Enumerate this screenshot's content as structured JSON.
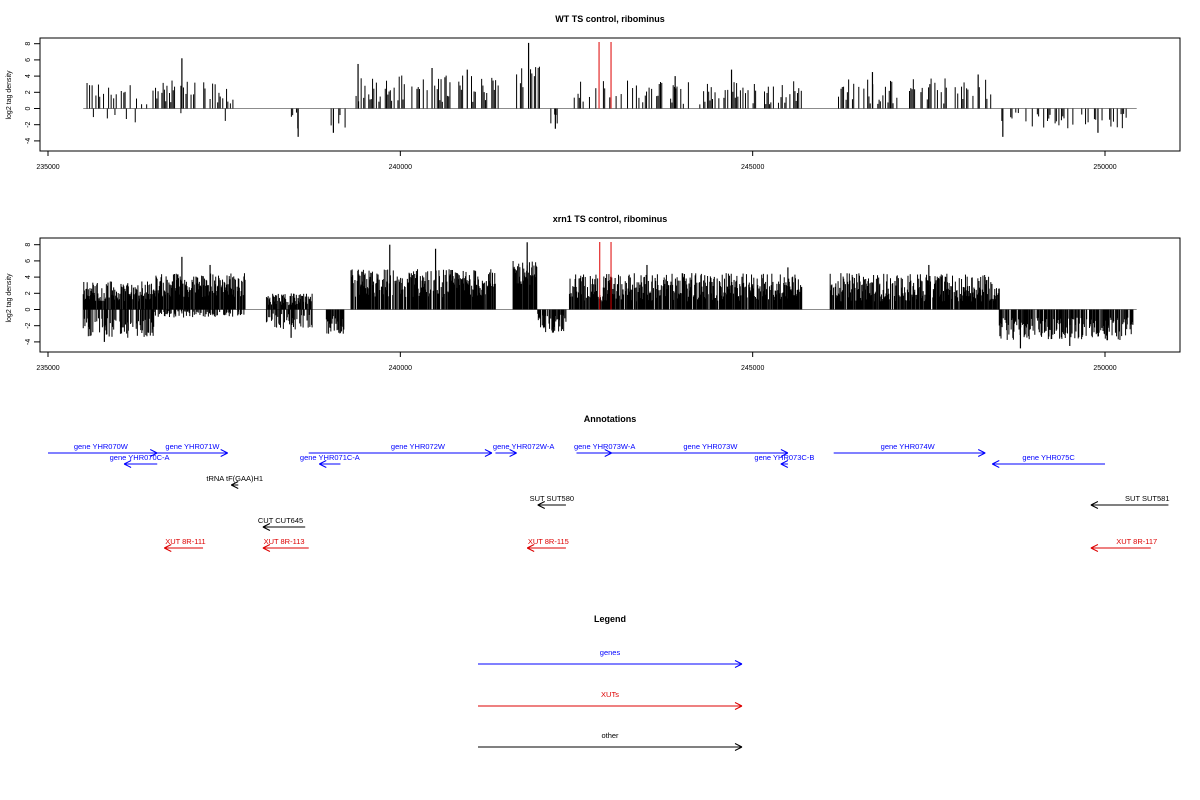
{
  "colors": {
    "gene": "#0000ff",
    "xut": "#dd0000",
    "other": "#000000",
    "marker": "#dd0000"
  },
  "chart_data": [
    {
      "type": "bar",
      "title": "WT TS control, ribominus",
      "ylabel": "log2 tag density",
      "xlim": [
        235000,
        250500
      ],
      "ylim": [
        -5,
        9
      ],
      "yticks": [
        -4,
        -2,
        0,
        2,
        4,
        6,
        8
      ],
      "xticks": [
        235000,
        240000,
        245000,
        250000
      ],
      "xtick_labels": [
        "235000",
        "240000",
        "245000",
        "250000"
      ],
      "baseline": [
        235500,
        250450
      ],
      "markers": [
        242820,
        242990
      ],
      "segments": [
        {
          "from": 235500,
          "to": 237650,
          "strand": "both",
          "pos": [
            0.5,
            3.5
          ],
          "neg": [
            -0.4,
            -1.8
          ],
          "peaks": [
            {
              "x": 236900,
              "v": 6.2
            }
          ]
        },
        {
          "from": 238000,
          "to": 238050,
          "strand": "both",
          "pos": [
            0.5,
            1.2
          ],
          "neg": [
            -0.5,
            -1.0
          ]
        },
        {
          "from": 238400,
          "to": 238700,
          "strand": "neg",
          "neg": [
            -0.5,
            -2.5
          ],
          "peaks": [
            {
              "x": 238550,
              "v": -3.5
            }
          ]
        },
        {
          "from": 239000,
          "to": 239250,
          "strand": "neg",
          "neg": [
            -0.5,
            -2.5
          ],
          "peaks": [
            {
              "x": 239050,
              "v": -3.0
            }
          ]
        },
        {
          "from": 239300,
          "to": 241400,
          "strand": "pos",
          "pos": [
            0.8,
            4.2
          ],
          "peaks": [
            {
              "x": 239400,
              "v": 5.5
            },
            {
              "x": 240450,
              "v": 5.0
            },
            {
              "x": 240950,
              "v": 4.8
            }
          ]
        },
        {
          "from": 241650,
          "to": 242000,
          "strand": "pos",
          "pos": [
            2.0,
            5.5
          ],
          "peaks": [
            {
              "x": 241820,
              "v": 8.1
            }
          ]
        },
        {
          "from": 242100,
          "to": 242250,
          "strand": "neg",
          "neg": [
            -0.5,
            -2.0
          ],
          "peaks": [
            {
              "x": 242200,
              "v": -2.5
            }
          ]
        },
        {
          "from": 242450,
          "to": 245700,
          "strand": "pos",
          "pos": [
            0.5,
            3.5
          ],
          "peaks": [
            {
              "x": 244700,
              "v": 4.8
            },
            {
              "x": 243900,
              "v": 4.0
            }
          ]
        },
        {
          "from": 246200,
          "to": 248400,
          "strand": "pos",
          "pos": [
            0.5,
            3.8
          ],
          "peaks": [
            {
              "x": 246700,
              "v": 4.5
            },
            {
              "x": 248200,
              "v": 4.2
            }
          ]
        },
        {
          "from": 248500,
          "to": 250350,
          "strand": "neg",
          "neg": [
            -0.5,
            -2.5
          ],
          "peaks": [
            {
              "x": 248550,
              "v": -3.5
            },
            {
              "x": 249900,
              "v": -3.0
            }
          ]
        }
      ]
    },
    {
      "type": "bar",
      "title": "xrn1 TS control, ribominus",
      "ylabel": "log2 tag density",
      "xlim": [
        235000,
        250500
      ],
      "ylim": [
        -5,
        9
      ],
      "yticks": [
        -4,
        -2,
        0,
        2,
        4,
        6,
        8
      ],
      "xticks": [
        235000,
        240000,
        245000,
        250000
      ],
      "xtick_labels": [
        "235000",
        "240000",
        "245000",
        "250000"
      ],
      "baseline": [
        235500,
        250450
      ],
      "markers": [
        242830,
        242990
      ],
      "segments": [
        {
          "from": 235500,
          "to": 236500,
          "strand": "both",
          "pos": [
            1.0,
            3.5
          ],
          "neg": [
            -1.0,
            -3.5
          ],
          "peaks": [
            {
              "x": 235800,
              "v": -4.0
            }
          ]
        },
        {
          "from": 236500,
          "to": 237800,
          "strand": "both",
          "pos": [
            1.5,
            4.5
          ],
          "neg": [
            -0.2,
            -1.0
          ],
          "peaks": [
            {
              "x": 236900,
              "v": 6.5
            },
            {
              "x": 237300,
              "v": 5.5
            }
          ]
        },
        {
          "from": 238100,
          "to": 238750,
          "strand": "both",
          "pos": [
            0.5,
            2.0
          ],
          "neg": [
            -0.5,
            -2.5
          ],
          "peaks": [
            {
              "x": 238450,
              "v": -3.5
            }
          ]
        },
        {
          "from": 238950,
          "to": 239200,
          "strand": "neg",
          "neg": [
            -0.5,
            -3.0
          ]
        },
        {
          "from": 239300,
          "to": 241350,
          "strand": "pos",
          "pos": [
            1.5,
            5.0
          ],
          "peaks": [
            {
              "x": 239850,
              "v": 8.0
            },
            {
              "x": 240500,
              "v": 7.5
            }
          ]
        },
        {
          "from": 241600,
          "to": 241950,
          "strand": "pos",
          "pos": [
            3.0,
            6.0
          ],
          "peaks": [
            {
              "x": 241800,
              "v": 8.3
            }
          ]
        },
        {
          "from": 241950,
          "to": 242350,
          "strand": "neg",
          "neg": [
            -0.5,
            -3.0
          ]
        },
        {
          "from": 242400,
          "to": 245700,
          "strand": "pos",
          "pos": [
            1.0,
            4.5
          ],
          "peaks": [
            {
              "x": 243500,
              "v": 5.5
            },
            {
              "x": 245500,
              "v": 5.2
            }
          ]
        },
        {
          "from": 246100,
          "to": 248500,
          "strand": "pos",
          "pos": [
            1.0,
            4.5
          ],
          "peaks": [
            {
              "x": 247500,
              "v": 5.5
            }
          ]
        },
        {
          "from": 248500,
          "to": 250400,
          "strand": "neg",
          "neg": [
            -1.0,
            -3.8
          ],
          "peaks": [
            {
              "x": 248800,
              "v": -4.8
            },
            {
              "x": 249500,
              "v": -4.5
            }
          ]
        }
      ]
    }
  ],
  "annotations": {
    "title": "Annotations",
    "items": [
      {
        "label": "gene YHR070W",
        "kind": "gene",
        "strand": "+",
        "start": 235000,
        "end": 236550,
        "row": 0,
        "label_x": 235750
      },
      {
        "label": "gene YHR070C-A",
        "kind": "gene",
        "strand": "-",
        "start": 236080,
        "end": 236550,
        "row": 1,
        "label_x": 236300
      },
      {
        "label": "gene YHR071W",
        "kind": "gene",
        "strand": "+",
        "start": 236550,
        "end": 237550,
        "row": 0,
        "label_x": 237050
      },
      {
        "label": "tRNA tF(GAA)H1",
        "kind": "other",
        "strand": "-",
        "start": 237600,
        "end": 237700,
        "row": 2,
        "label_x": 237650
      },
      {
        "label": "gene YHR071C-A",
        "kind": "gene",
        "strand": "-",
        "start": 238850,
        "end": 239150,
        "row": 1,
        "label_x": 239000
      },
      {
        "label": "gene YHR072W",
        "kind": "gene",
        "strand": "+",
        "start": 238700,
        "end": 241300,
        "row": 0,
        "label_x": 240250
      },
      {
        "label": "gene YHR072W-A",
        "kind": "gene",
        "strand": "+",
        "start": 241350,
        "end": 241650,
        "row": 0,
        "label_x": 241750
      },
      {
        "label": "CUT CUT645",
        "kind": "other",
        "strand": "-",
        "start": 238050,
        "end": 238650,
        "row": 4,
        "label_x": 238300
      },
      {
        "label": "SUT SUT580",
        "kind": "other",
        "strand": "-",
        "start": 241950,
        "end": 242350,
        "row": 3,
        "label_x": 242150
      },
      {
        "label": "gene YHR073W-A",
        "kind": "gene",
        "strand": "+",
        "start": 242500,
        "end": 243000,
        "row": 0,
        "label_x": 242900
      },
      {
        "label": "gene YHR073W",
        "kind": "gene",
        "strand": "+",
        "start": 243000,
        "end": 245500,
        "row": 0,
        "label_x": 244400
      },
      {
        "label": "gene YHR073C-B",
        "kind": "gene",
        "strand": "-",
        "start": 245400,
        "end": 245500,
        "row": 1,
        "label_x": 245450
      },
      {
        "label": "gene YHR074W",
        "kind": "gene",
        "strand": "+",
        "start": 246150,
        "end": 248300,
        "row": 0,
        "label_x": 247200
      },
      {
        "label": "gene YHR075C",
        "kind": "gene",
        "strand": "-",
        "start": 248400,
        "end": 250000,
        "row": 1,
        "label_x": 249200
      },
      {
        "label": "SUT SUT581",
        "kind": "other",
        "strand": "-",
        "start": 249800,
        "end": 250900,
        "row": 3,
        "label_x": 250600
      },
      {
        "label": "XUT 8R-111",
        "kind": "xut",
        "strand": "-",
        "start": 236650,
        "end": 237200,
        "row": 5,
        "label_x": 236950
      },
      {
        "label": "XUT 8R-113",
        "kind": "xut",
        "strand": "-",
        "start": 238050,
        "end": 238700,
        "row": 5,
        "label_x": 238350
      },
      {
        "label": "XUT 8R-115",
        "kind": "xut",
        "strand": "-",
        "start": 241800,
        "end": 242350,
        "row": 5,
        "label_x": 242100
      },
      {
        "label": "XUT 8R-117",
        "kind": "xut",
        "strand": "-",
        "start": 249800,
        "end": 250650,
        "row": 5,
        "label_x": 250450
      }
    ]
  },
  "legend": {
    "title": "Legend",
    "items": [
      {
        "label": "genes",
        "kind": "gene"
      },
      {
        "label": "XUTs",
        "kind": "xut"
      },
      {
        "label": "other",
        "kind": "other"
      }
    ]
  }
}
